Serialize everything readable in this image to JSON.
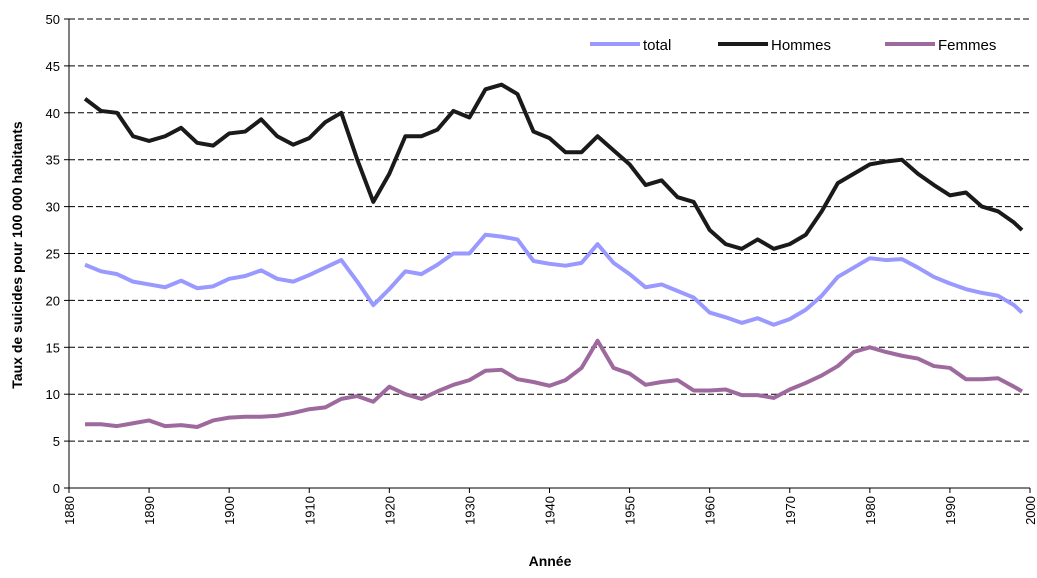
{
  "chart_data": {
    "type": "line",
    "x": [
      1882,
      1884,
      1886,
      1888,
      1890,
      1892,
      1894,
      1896,
      1898,
      1900,
      1902,
      1904,
      1906,
      1908,
      1910,
      1912,
      1914,
      1916,
      1918,
      1920,
      1922,
      1924,
      1926,
      1928,
      1930,
      1932,
      1934,
      1936,
      1938,
      1940,
      1942,
      1944,
      1946,
      1948,
      1950,
      1952,
      1954,
      1956,
      1958,
      1960,
      1962,
      1964,
      1966,
      1968,
      1970,
      1972,
      1974,
      1976,
      1978,
      1980,
      1982,
      1984,
      1986,
      1988,
      1990,
      1992,
      1994,
      1996,
      1998,
      1999
    ],
    "series": [
      {
        "name": "total",
        "color": "#9999ff",
        "values": [
          23.8,
          23.1,
          22.8,
          22.0,
          21.7,
          21.4,
          22.1,
          21.3,
          21.5,
          22.3,
          22.6,
          23.2,
          22.3,
          22.0,
          22.7,
          23.5,
          24.3,
          22.0,
          19.5,
          21.2,
          23.1,
          22.8,
          23.8,
          25.0,
          25.0,
          27.0,
          26.8,
          26.5,
          24.2,
          23.9,
          23.7,
          24.0,
          26.0,
          24.0,
          22.8,
          21.4,
          21.7,
          21.0,
          20.3,
          18.7,
          18.2,
          17.6,
          18.1,
          17.4,
          18.0,
          19.0,
          20.5,
          22.5,
          23.5,
          24.5,
          24.3,
          24.4,
          23.5,
          22.5,
          21.8,
          21.2,
          20.8,
          20.5,
          19.5,
          18.7
        ]
      },
      {
        "name": "Hommes",
        "color": "#1a1a1a",
        "values": [
          41.5,
          40.2,
          40.0,
          37.5,
          37.0,
          37.5,
          38.4,
          36.8,
          36.5,
          37.8,
          38.0,
          39.3,
          37.5,
          36.6,
          37.3,
          39.0,
          40.0,
          35.0,
          30.5,
          33.5,
          37.5,
          37.5,
          38.2,
          40.2,
          39.5,
          42.5,
          43.0,
          42.0,
          38.0,
          37.3,
          35.8,
          35.8,
          37.5,
          36.0,
          34.5,
          32.3,
          32.8,
          31.0,
          30.5,
          27.5,
          26.0,
          25.5,
          26.5,
          25.5,
          26.0,
          27.0,
          29.5,
          32.5,
          33.5,
          34.5,
          34.8,
          35.0,
          33.5,
          32.3,
          31.2,
          31.5,
          30.0,
          29.5,
          28.3,
          27.5
        ]
      },
      {
        "name": "Femmes",
        "color": "#9e6a9e",
        "values": [
          6.8,
          6.8,
          6.6,
          6.9,
          7.2,
          6.6,
          6.7,
          6.5,
          7.2,
          7.5,
          7.6,
          7.6,
          7.7,
          8.0,
          8.4,
          8.6,
          9.5,
          9.8,
          9.2,
          10.8,
          10.0,
          9.5,
          10.3,
          11.0,
          11.5,
          12.5,
          12.6,
          11.6,
          11.3,
          10.9,
          11.5,
          12.8,
          15.7,
          12.8,
          12.2,
          11.0,
          11.3,
          11.5,
          10.4,
          10.4,
          10.5,
          9.9,
          9.9,
          9.6,
          10.5,
          11.2,
          12.0,
          13.0,
          14.5,
          15.0,
          14.5,
          14.1,
          13.8,
          13.0,
          12.8,
          11.6,
          11.6,
          11.7,
          10.8,
          10.3
        ]
      }
    ],
    "xlabel": "Année",
    "ylabel": "Taux de suicides pour 100 000 habitants",
    "xlim": [
      1880,
      2000
    ],
    "xticks": [
      1880,
      1890,
      1900,
      1910,
      1920,
      1930,
      1940,
      1950,
      1960,
      1970,
      1980,
      1990,
      2000
    ],
    "ylim": [
      0,
      50
    ],
    "yticks": [
      0,
      5,
      10,
      15,
      20,
      25,
      30,
      35,
      40,
      45,
      50
    ],
    "grid": true,
    "legend": "top-right"
  }
}
